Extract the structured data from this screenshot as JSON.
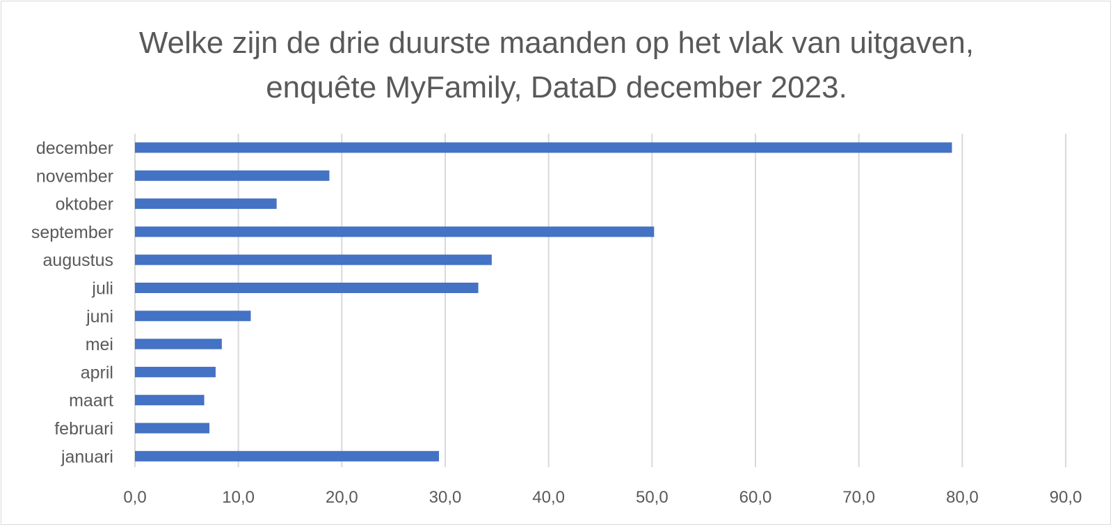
{
  "chart_data": {
    "type": "bar",
    "orientation": "horizontal",
    "title_lines": [
      "Welke zijn de drie duurste maanden op het vlak van uitgaven,",
      "enquête MyFamily, DataD december 2023."
    ],
    "categories": [
      "december",
      "november",
      "oktober",
      "september",
      "augustus",
      "juli",
      "juni",
      "mei",
      "april",
      "maart",
      "februari",
      "januari"
    ],
    "values": [
      79.0,
      18.8,
      13.7,
      50.2,
      34.5,
      33.2,
      11.2,
      8.4,
      7.8,
      6.7,
      7.2,
      29.4
    ],
    "xlim": [
      0,
      90
    ],
    "xticks": [
      0,
      10,
      20,
      30,
      40,
      50,
      60,
      70,
      80,
      90
    ],
    "xtick_labels": [
      "0,0",
      "10,0",
      "20,0",
      "30,0",
      "40,0",
      "50,0",
      "60,0",
      "70,0",
      "80,0",
      "90,0"
    ],
    "xlabel": "",
    "ylabel": "",
    "grid": true,
    "legend": "none",
    "bar_color": "#4472c4",
    "grid_color": "#d9d9d9",
    "text_color": "#595959"
  }
}
